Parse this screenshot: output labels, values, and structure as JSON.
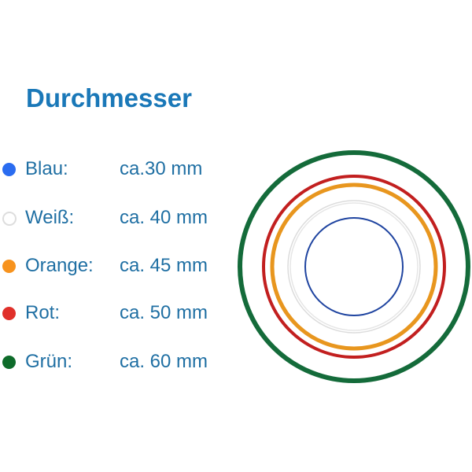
{
  "title": "Durchmesser",
  "items": [
    {
      "label": "Blau:",
      "value": "ca.30 mm",
      "color": "#2a6cf0",
      "ring_color": "#1f44a0",
      "diameter_mm": 30
    },
    {
      "label": "Weiß:",
      "value": "ca. 40 mm",
      "color": "#ffffff",
      "ring_color": "#dcdcdc",
      "diameter_mm": 40
    },
    {
      "label": "Orange:",
      "value": "ca. 45 mm",
      "color": "#f7931e",
      "ring_color": "#e8961e",
      "diameter_mm": 45
    },
    {
      "label": "Rot:",
      "value": "ca. 50 mm",
      "color": "#e0302a",
      "ring_color": "#c21f1f",
      "diameter_mm": 50
    },
    {
      "label": "Grün:",
      "value": "ca. 60 mm",
      "color": "#0e6b2a",
      "ring_color": "#146b3a",
      "diameter_mm": 60
    }
  ]
}
